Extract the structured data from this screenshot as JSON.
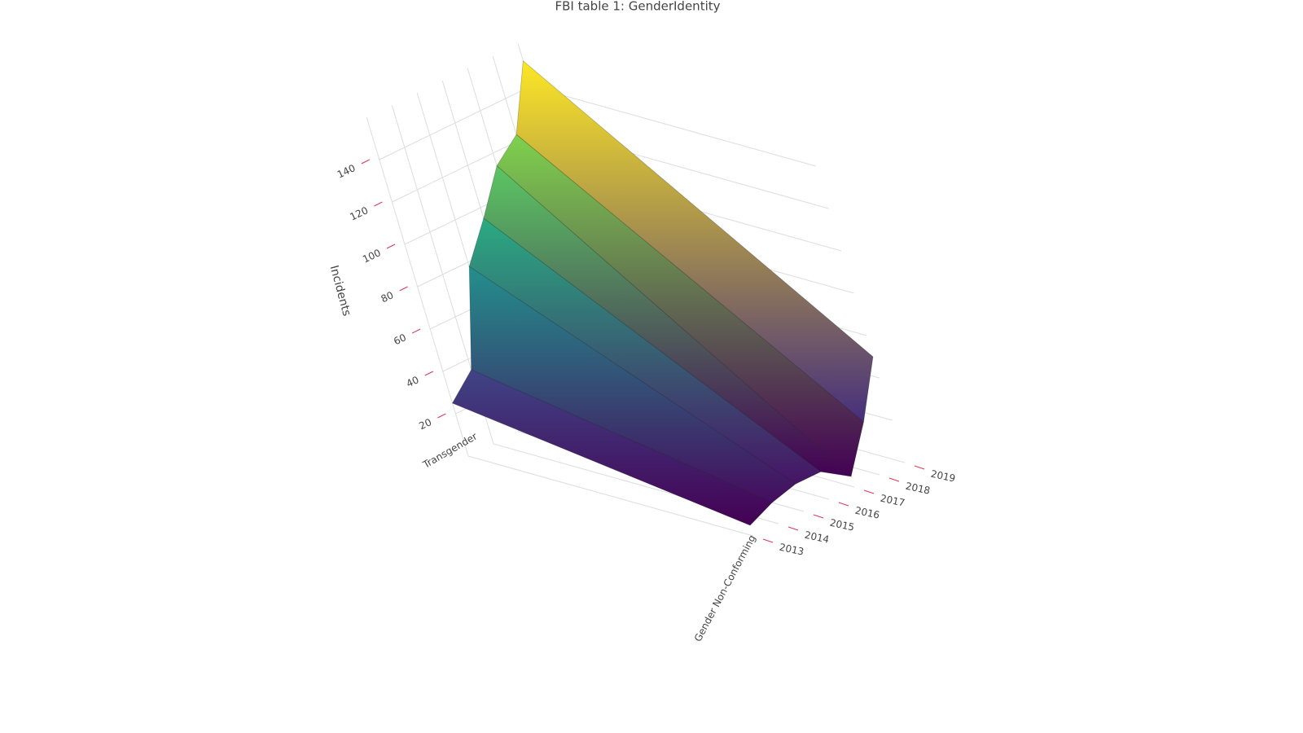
{
  "chart_data": {
    "type": "surface",
    "title": "FBI table 1: GenderIdentity",
    "categories": [
      "Transgender",
      "Gender Non-Conforming"
    ],
    "x": [
      2013,
      2014,
      2015,
      2016,
      2017,
      2018,
      2019
    ],
    "series": [
      {
        "name": "Transgender",
        "values": [
          25,
          35,
          78,
          95,
          114,
          123,
          152
        ]
      },
      {
        "name": "Gender Non-Conforming",
        "values": [
          5,
          10,
          13,
          13,
          5,
          25,
          50
        ]
      }
    ],
    "zlabel": "Incidents",
    "xlim": [
      2013,
      2019
    ],
    "xticks": [
      2013,
      2014,
      2015,
      2016,
      2017,
      2018,
      2019
    ],
    "zlim": [
      0,
      160
    ],
    "zticks": [
      20,
      40,
      60,
      80,
      100,
      120,
      140
    ],
    "colorscale": "Viridis",
    "grid": true
  }
}
